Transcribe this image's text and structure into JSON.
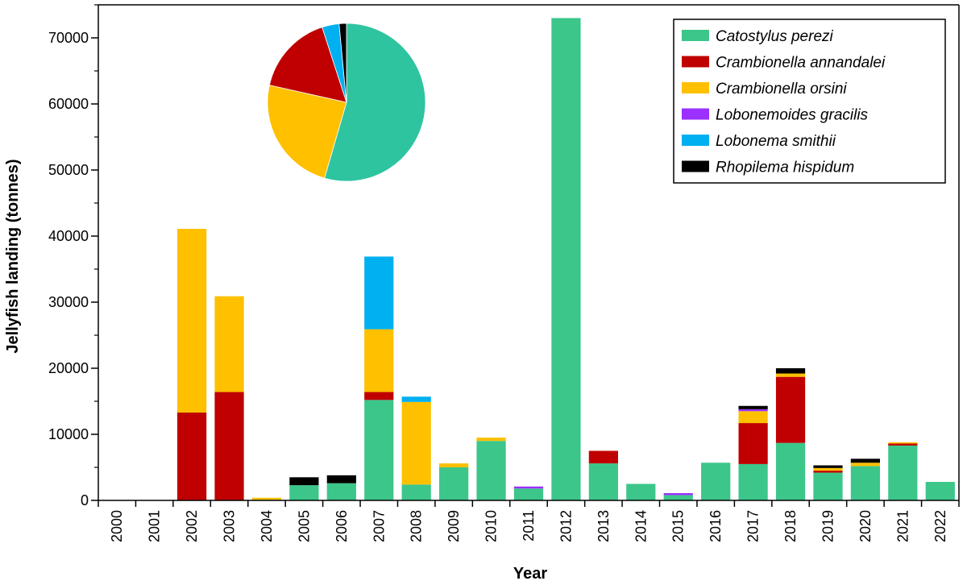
{
  "chart_data": {
    "type": "bar",
    "stacked": true,
    "title": "",
    "xlabel": "Year",
    "ylabel": "Jellyfish landing (tonnes)",
    "ylim": [
      0,
      75000
    ],
    "yticks": [
      0,
      10000,
      20000,
      30000,
      40000,
      50000,
      60000,
      70000
    ],
    "ytick_labels": [
      "0",
      "10000",
      "20000",
      "30000",
      "40000",
      "50000",
      "60000",
      "70000"
    ],
    "legend_position": "top-right",
    "grid": false,
    "categories": [
      "2000",
      "2001",
      "2002",
      "2003",
      "2004",
      "2005",
      "2006",
      "2007",
      "2008",
      "2009",
      "2010",
      "2011",
      "2012",
      "2013",
      "2014",
      "2015",
      "2016",
      "2017",
      "2018",
      "2019",
      "2020",
      "2021",
      "2022"
    ],
    "series": [
      {
        "name": "Catostylus perezi",
        "color": "#3cc68a",
        "values": [
          0,
          0,
          0,
          0,
          100,
          2300,
          2600,
          15200,
          2400,
          5000,
          9000,
          1800,
          73000,
          5600,
          2500,
          800,
          5700,
          5500,
          8700,
          4200,
          5200,
          8300,
          2800
        ]
      },
      {
        "name": "Crambionella annandalei",
        "color": "#c00000",
        "values": [
          0,
          0,
          13300,
          16400,
          0,
          0,
          0,
          1200,
          0,
          0,
          0,
          0,
          0,
          1900,
          0,
          0,
          0,
          6200,
          10000,
          300,
          0,
          300,
          0
        ]
      },
      {
        "name": "Crambionella orsini",
        "color": "#ffc000",
        "values": [
          0,
          0,
          27800,
          14500,
          300,
          0,
          0,
          9500,
          12500,
          600,
          500,
          0,
          0,
          0,
          0,
          0,
          0,
          1800,
          500,
          400,
          500,
          200,
          0
        ]
      },
      {
        "name": "Lobonemoides gracilis",
        "color": "#9b30ff",
        "values": [
          0,
          0,
          0,
          0,
          0,
          0,
          0,
          0,
          0,
          0,
          0,
          300,
          0,
          0,
          0,
          300,
          0,
          300,
          0,
          0,
          0,
          0,
          0
        ]
      },
      {
        "name": "Lobonema smithii",
        "color": "#00b0f0",
        "values": [
          0,
          0,
          0,
          0,
          0,
          0,
          0,
          11000,
          800,
          0,
          0,
          0,
          0,
          0,
          0,
          0,
          0,
          0,
          0,
          0,
          0,
          0,
          0
        ]
      },
      {
        "name": "Rhopilema hispidum",
        "color": "#000000",
        "values": [
          0,
          0,
          0,
          0,
          0,
          1200,
          1200,
          0,
          0,
          0,
          0,
          0,
          0,
          0,
          0,
          0,
          0,
          500,
          800,
          400,
          600,
          0,
          0
        ]
      }
    ],
    "inset_pie": {
      "type": "pie",
      "slices": [
        {
          "name": "Catostylus perezi",
          "percent": 54.5,
          "color": "#2ec4a0"
        },
        {
          "name": "Crambionella orsini",
          "percent": 24.0,
          "color": "#ffc000"
        },
        {
          "name": "Crambionella annandalei",
          "percent": 16.5,
          "color": "#c00000"
        },
        {
          "name": "Lobonema smithii",
          "percent": 3.5,
          "color": "#00b0f0"
        },
        {
          "name": "Rhopilema hispidum",
          "percent": 1.5,
          "color": "#000000"
        }
      ]
    }
  }
}
